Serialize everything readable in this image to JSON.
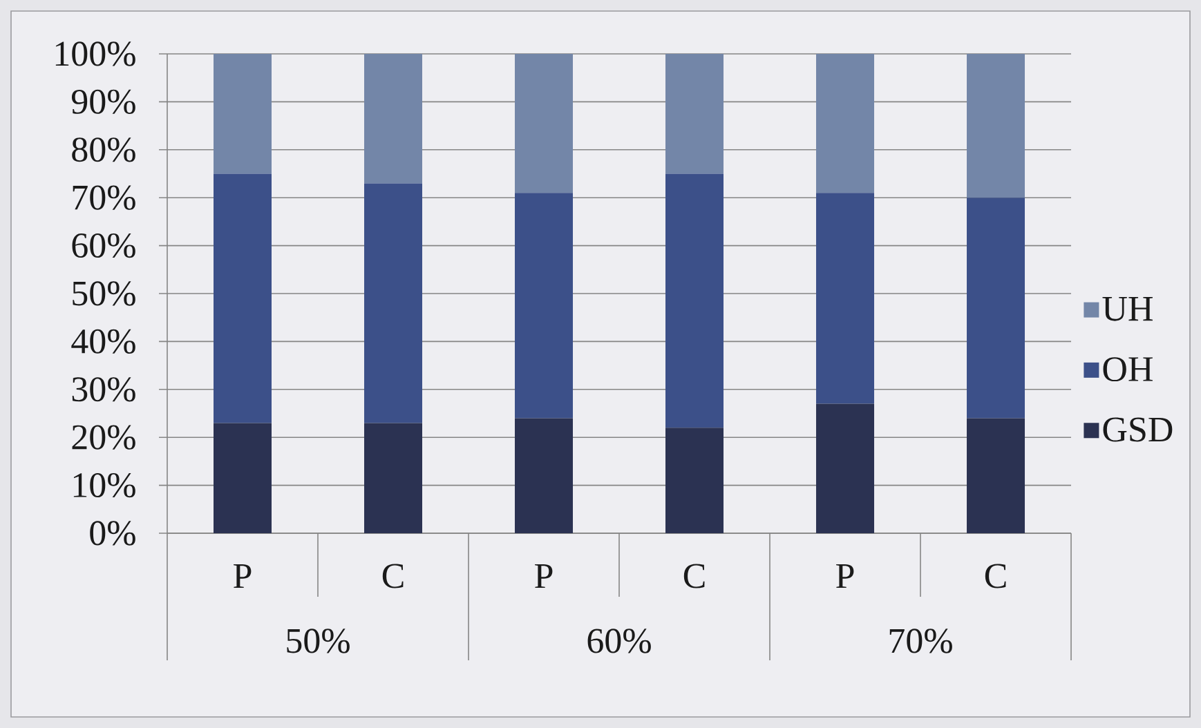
{
  "chart_data": {
    "type": "bar",
    "stacked": true,
    "categories": [
      "P",
      "C",
      "P",
      "C",
      "P",
      "C"
    ],
    "series": [
      {
        "name": "GSD",
        "color": "#2b3252",
        "values": [
          23,
          23,
          24,
          22,
          27,
          24
        ]
      },
      {
        "name": "OH",
        "color": "#3c5089",
        "values": [
          52,
          50,
          47,
          53,
          44,
          46
        ]
      },
      {
        "name": "UH",
        "color": "#7386a8",
        "values": [
          25,
          27,
          29,
          25,
          29,
          30
        ]
      }
    ],
    "ylim": [
      0,
      100
    ],
    "yticks": [
      {
        "value": 0,
        "label": "0%"
      },
      {
        "value": 10,
        "label": "10%"
      },
      {
        "value": 20,
        "label": "20%"
      },
      {
        "value": 30,
        "label": "30%"
      },
      {
        "value": 40,
        "label": "40%"
      },
      {
        "value": 50,
        "label": "50%"
      },
      {
        "value": 60,
        "label": "60%"
      },
      {
        "value": 70,
        "label": "70%"
      },
      {
        "value": 80,
        "label": "80%"
      },
      {
        "value": 90,
        "label": "90%"
      },
      {
        "value": 100,
        "label": "100%"
      }
    ],
    "grid": "y",
    "legend": "right",
    "annotations": [
      "50%",
      "60%",
      "70%"
    ]
  }
}
